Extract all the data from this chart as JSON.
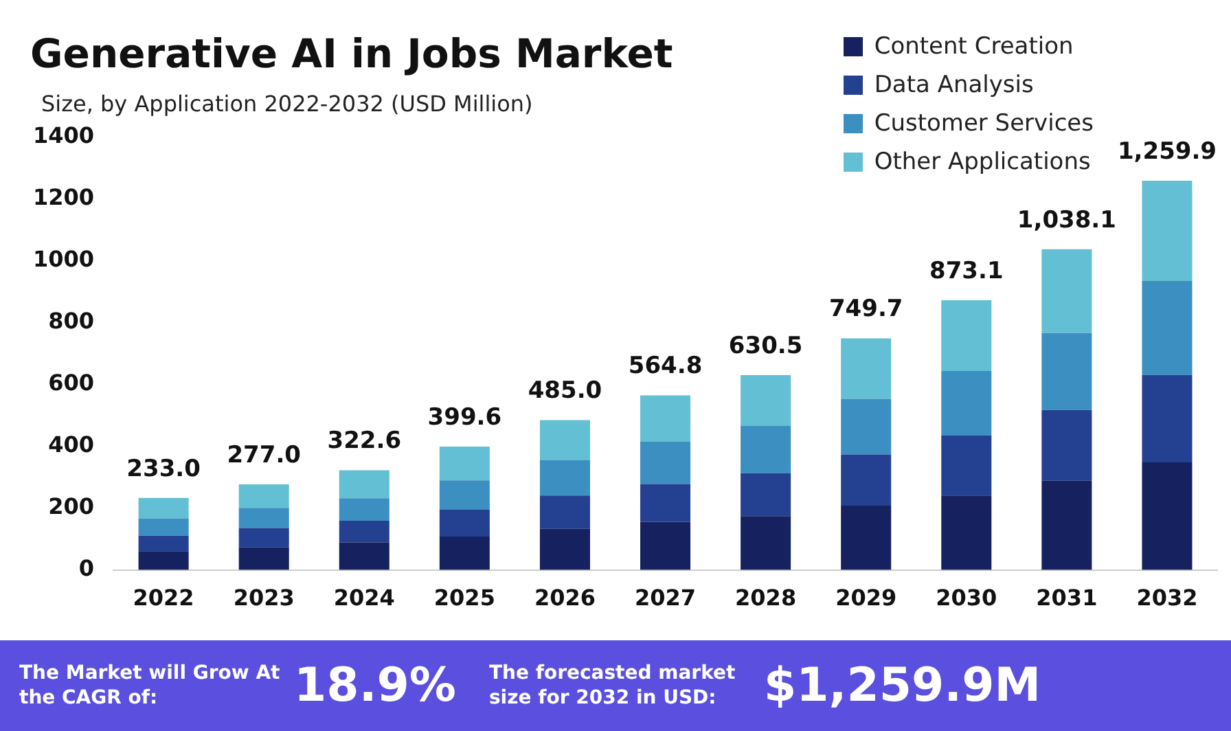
{
  "chart_data": {
    "type": "bar",
    "title": "Generative AI in Jobs Market",
    "subtitle": "Size, by Application 2022-2032 (USD Million)",
    "categories": [
      "2022",
      "2023",
      "2024",
      "2025",
      "2026",
      "2027",
      "2028",
      "2029",
      "2030",
      "2031",
      "2032"
    ],
    "stacked": true,
    "series": [
      {
        "name": "Content Creation",
        "color": "#16215f",
        "values": [
          61,
          73,
          89,
          108,
          133,
          156,
          174,
          208,
          241,
          289,
          348
        ]
      },
      {
        "name": "Data Analysis",
        "color": "#234190",
        "values": [
          50,
          63,
          70,
          87,
          108,
          122,
          139,
          166,
          194,
          229,
          283
        ]
      },
      {
        "name": "Customer Services",
        "color": "#3b8fc1",
        "values": [
          56,
          65,
          73,
          95,
          114,
          137,
          153,
          180,
          209,
          249,
          304
        ]
      },
      {
        "name": "Other Applications",
        "color": "#63bfd4",
        "values": [
          66,
          76,
          90.6,
          109.6,
          130,
          149.8,
          164.5,
          195.7,
          229.1,
          271.1,
          324.9
        ]
      }
    ],
    "totals": [
      "233.0",
      "277.0",
      "322.6",
      "399.6",
      "485.0",
      "564.8",
      "630.5",
      "749.7",
      "873.1",
      "1,038.1",
      "1,259.9"
    ],
    "ylim": [
      0,
      1400
    ],
    "yticks": [
      0,
      200,
      400,
      600,
      800,
      1000,
      1200,
      1400
    ],
    "grid": false,
    "legend": "top right",
    "annotations": [
      "The Market will Grow At the CAGR of:",
      "18.9%",
      "The forecasted market size for 2032 in USD:",
      "$1,259.9M"
    ]
  }
}
